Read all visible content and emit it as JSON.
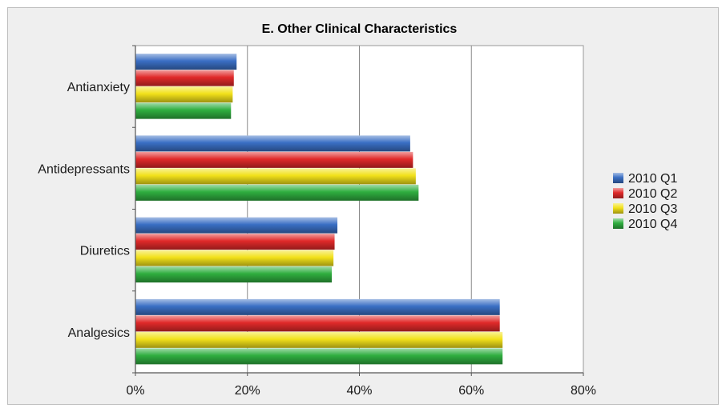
{
  "chart_data": {
    "type": "bar",
    "orientation": "horizontal",
    "title": "E. Other Clinical Characteristics",
    "categories": [
      "Antianxiety",
      "Antidepressants",
      "Diuretics",
      "Analgesics"
    ],
    "series": [
      {
        "name": "2010 Q1",
        "color": "#3a6fc4",
        "values": [
          18,
          49,
          36,
          65
        ]
      },
      {
        "name": "2010 Q2",
        "color": "#e02a2a",
        "values": [
          17.5,
          49.5,
          35.5,
          65
        ]
      },
      {
        "name": "2010 Q3",
        "color": "#f2e11a",
        "values": [
          17.3,
          50,
          35.3,
          65.5
        ]
      },
      {
        "name": "2010 Q4",
        "color": "#2fae3f",
        "values": [
          17,
          50.5,
          35,
          65.5
        ]
      }
    ],
    "xlim": [
      0,
      80
    ],
    "xticks": [
      0,
      20,
      40,
      60,
      80
    ],
    "xtick_labels": [
      "0%",
      "20%",
      "40%",
      "60%",
      "80%"
    ],
    "xlabel": "",
    "ylabel": "",
    "grid": "vertical",
    "legend": "right"
  }
}
